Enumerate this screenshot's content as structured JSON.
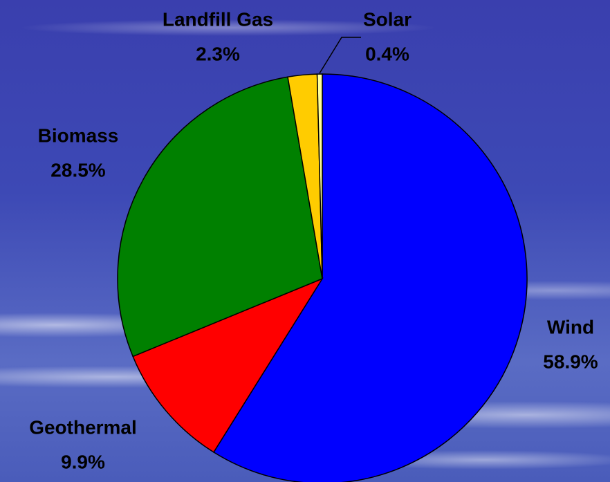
{
  "chart_data": {
    "type": "pie",
    "categories": [
      "Wind",
      "Geothermal",
      "Biomass",
      "Landfill Gas",
      "Solar"
    ],
    "values": [
      58.9,
      9.9,
      28.5,
      2.3,
      0.4
    ],
    "value_labels": [
      "58.9%",
      "9.9%",
      "28.5%",
      "2.3%",
      "0.4%"
    ],
    "colors": [
      "#0000ff",
      "#ff0000",
      "#008000",
      "#ffcc00",
      "#ffff99"
    ]
  }
}
